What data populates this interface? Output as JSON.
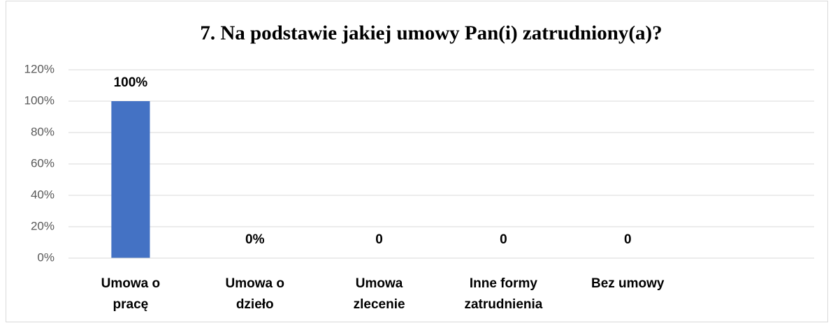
{
  "chart_data": {
    "type": "bar",
    "title": "7. Na podstawie jakiej umowy Pan(i) zatrudniony(a)?",
    "categories": [
      "Umowa o pracę",
      "Umowa o dzieło",
      "Umowa zlecenie",
      "Inne formy zatrudnienia",
      "Bez umowy",
      null
    ],
    "values": [
      100,
      0,
      0,
      0,
      0,
      null
    ],
    "value_labels": [
      "100%",
      "0%",
      "0",
      "0",
      "0",
      null
    ],
    "color": "#4472c4",
    "ylim": [
      0,
      120
    ],
    "yticks": [
      {
        "value": 0,
        "label": "0%"
      },
      {
        "value": 20,
        "label": "20%"
      },
      {
        "value": 40,
        "label": "40%"
      },
      {
        "value": 60,
        "label": "60%"
      },
      {
        "value": 80,
        "label": "80%"
      },
      {
        "value": 100,
        "label": "100%"
      },
      {
        "value": 120,
        "label": "120%"
      }
    ],
    "grid": true
  }
}
